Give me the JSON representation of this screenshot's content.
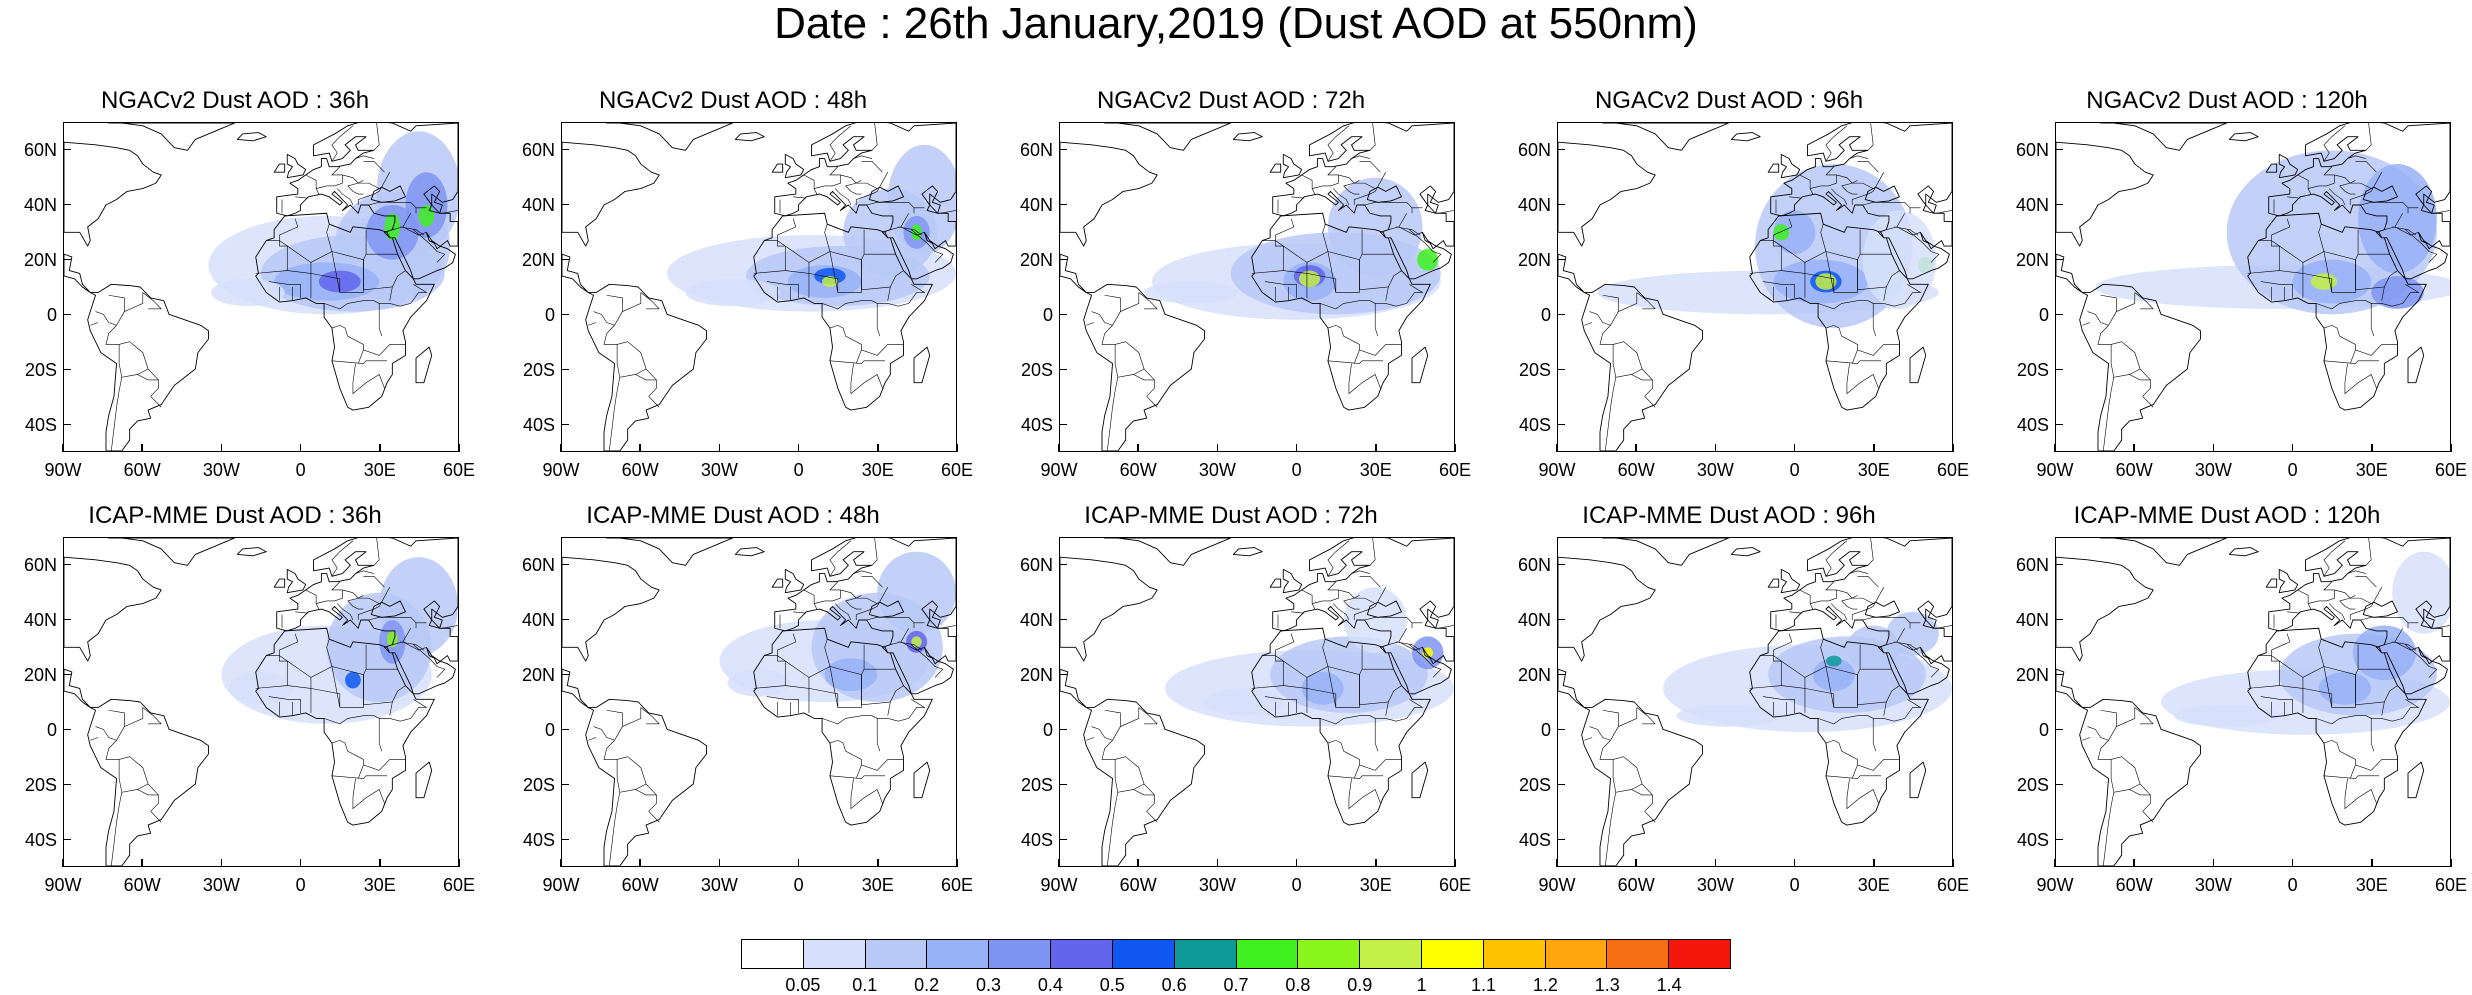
{
  "main_title": "Date : 26th January,2019 (Dust AOD at 550nm)",
  "lat_ticks": [
    "60N",
    "40N",
    "20N",
    "0",
    "20S",
    "40S"
  ],
  "lon_ticks": [
    "90W",
    "60W",
    "30W",
    "0",
    "30E",
    "60E"
  ],
  "map_extent": {
    "lon_min": -90,
    "lon_max": 60,
    "lat_min": -50,
    "lat_max": 70
  },
  "panels": [
    {
      "title": "NGACv2 Dust AOD : 36h",
      "model": "NGACv2",
      "lead": "36h"
    },
    {
      "title": "NGACv2 Dust AOD : 48h",
      "model": "NGACv2",
      "lead": "48h"
    },
    {
      "title": "NGACv2 Dust AOD : 72h",
      "model": "NGACv2",
      "lead": "72h"
    },
    {
      "title": "NGACv2 Dust AOD : 96h",
      "model": "NGACv2",
      "lead": "96h"
    },
    {
      "title": "NGACv2 Dust AOD : 120h",
      "model": "NGACv2",
      "lead": "120h"
    },
    {
      "title": "ICAP-MME Dust AOD : 36h",
      "model": "ICAP-MME",
      "lead": "36h"
    },
    {
      "title": "ICAP-MME Dust AOD : 48h",
      "model": "ICAP-MME",
      "lead": "48h"
    },
    {
      "title": "ICAP-MME Dust AOD : 72h",
      "model": "ICAP-MME",
      "lead": "72h"
    },
    {
      "title": "ICAP-MME Dust AOD : 96h",
      "model": "ICAP-MME",
      "lead": "96h"
    },
    {
      "title": "ICAP-MME Dust AOD : 120h",
      "model": "ICAP-MME",
      "lead": "120h"
    }
  ],
  "colorbar": {
    "labels": [
      "0.05",
      "0.1",
      "0.2",
      "0.3",
      "0.4",
      "0.5",
      "0.6",
      "0.7",
      "0.8",
      "0.9",
      "1",
      "1.1",
      "1.2",
      "1.3",
      "1.4"
    ],
    "colors": [
      "#ffffff",
      "#d6e0fa",
      "#b9c9f7",
      "#98b2f7",
      "#7f95f2",
      "#6264ec",
      "#0f57f0",
      "#0e9999",
      "#3ff01e",
      "#8af51a",
      "#c4f048",
      "#ffff00",
      "#fec300",
      "#ffa60f",
      "#f76f12",
      "#f5170c"
    ]
  }
}
